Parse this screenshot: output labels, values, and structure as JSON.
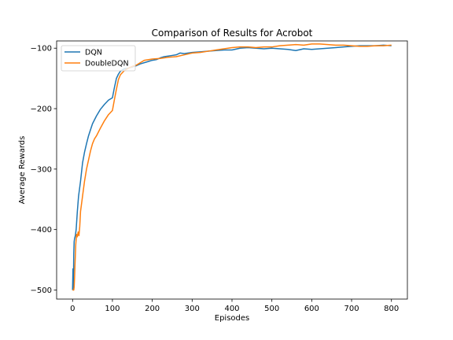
{
  "chart_data": {
    "type": "line",
    "title": "Comparison of Results for Acrobot",
    "xlabel": "Episodes",
    "ylabel": "Average Rewards",
    "xlim": [
      -40,
      840
    ],
    "ylim": [
      -515,
      -88
    ],
    "xticks": [
      0,
      100,
      200,
      300,
      400,
      500,
      600,
      700,
      800
    ],
    "yticks": [
      -500,
      -400,
      -300,
      -200,
      -100
    ],
    "grid": false,
    "legend_position": "top-left",
    "series": [
      {
        "name": "DQN",
        "color": "#1f77b4",
        "x": [
          0,
          1,
          2,
          3,
          4,
          5,
          7,
          9,
          12,
          15,
          20,
          25,
          30,
          35,
          40,
          45,
          50,
          60,
          70,
          80,
          90,
          100,
          105,
          110,
          115,
          120,
          125,
          130,
          140,
          150,
          160,
          170,
          180,
          190,
          200,
          210,
          220,
          230,
          240,
          250,
          260,
          270,
          280,
          290,
          300,
          320,
          340,
          360,
          380,
          400,
          420,
          440,
          460,
          480,
          500,
          520,
          540,
          560,
          580,
          600,
          620,
          640,
          660,
          680,
          700,
          720,
          740,
          760,
          780,
          800
        ],
        "y": [
          -500,
          -465,
          -500,
          -440,
          -420,
          -415,
          -410,
          -400,
          -370,
          -345,
          -320,
          -290,
          -272,
          -258,
          -245,
          -235,
          -225,
          -212,
          -201,
          -193,
          -186,
          -182,
          -165,
          -150,
          -143,
          -138,
          -136,
          -134,
          -133,
          -131,
          -129,
          -126,
          -124,
          -122,
          -120,
          -119,
          -116,
          -114,
          -113,
          -112,
          -111,
          -108,
          -109,
          -108,
          -107,
          -106,
          -105,
          -104,
          -103,
          -103,
          -100,
          -99,
          -100,
          -101,
          -100,
          -101,
          -102,
          -104,
          -101,
          -102,
          -101,
          -100,
          -99,
          -98,
          -97,
          -96,
          -96,
          -96,
          -95,
          -96
        ]
      },
      {
        "name": "DoubleDQN",
        "color": "#ff7f0e",
        "x": [
          0,
          1,
          2,
          3,
          4,
          5,
          6,
          8,
          10,
          12,
          14,
          16,
          18,
          20,
          25,
          30,
          35,
          40,
          45,
          50,
          55,
          60,
          70,
          80,
          90,
          100,
          105,
          110,
          115,
          120,
          130,
          140,
          150,
          160,
          170,
          180,
          200,
          220,
          240,
          260,
          280,
          300,
          320,
          340,
          360,
          380,
          400,
          420,
          440,
          460,
          480,
          500,
          520,
          540,
          560,
          580,
          600,
          620,
          640,
          660,
          680,
          700,
          720,
          740,
          760,
          780,
          800
        ],
        "y": [
          -500,
          -500,
          -500,
          -500,
          -495,
          -480,
          -460,
          -425,
          -408,
          -412,
          -404,
          -410,
          -395,
          -370,
          -345,
          -320,
          -300,
          -285,
          -270,
          -258,
          -250,
          -245,
          -232,
          -220,
          -210,
          -203,
          -185,
          -168,
          -152,
          -144,
          -137,
          -133,
          -130,
          -128,
          -124,
          -120,
          -118,
          -117,
          -115,
          -114,
          -111,
          -108,
          -107,
          -105,
          -103,
          -101,
          -99,
          -98,
          -98,
          -99,
          -98,
          -98,
          -96,
          -95,
          -94,
          -95,
          -93,
          -93,
          -94,
          -95,
          -95,
          -96,
          -97,
          -97,
          -96,
          -96,
          -95
        ]
      }
    ]
  }
}
